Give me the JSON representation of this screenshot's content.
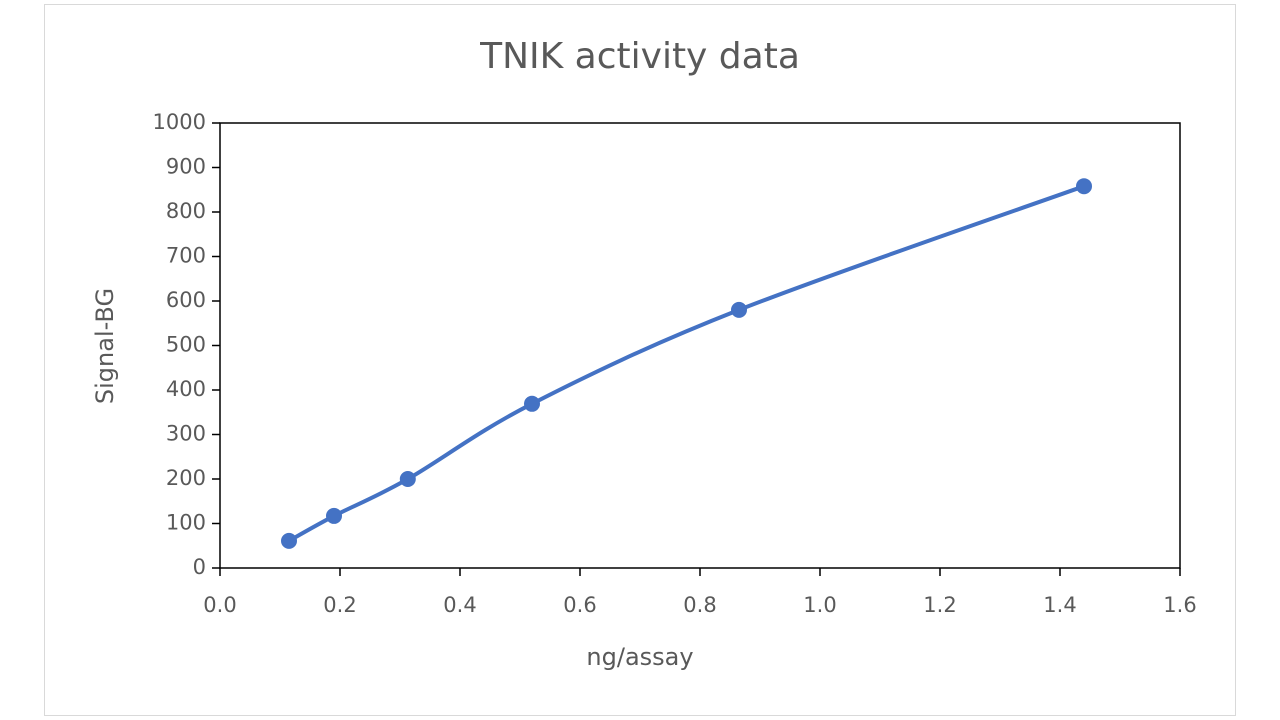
{
  "chart_data": {
    "type": "scatter",
    "title": "TNIK activity data",
    "x_label": "ng/assay",
    "y_label": "Signal-BG",
    "x": [
      0.115,
      0.19,
      0.313,
      0.52,
      0.865,
      1.44
    ],
    "series": [
      {
        "name": "TNIK",
        "color": "#4472c4",
        "values": [
          61,
          117,
          200,
          369,
          580,
          858
        ]
      }
    ],
    "xlim": [
      0,
      1.6
    ],
    "xticks": [
      {
        "value": 0,
        "label": "0.0"
      },
      {
        "value": 0.2,
        "label": "0.2"
      },
      {
        "value": 0.4,
        "label": "0.4"
      },
      {
        "value": 0.6,
        "label": "0.6"
      },
      {
        "value": 0.8,
        "label": "0.8"
      },
      {
        "value": 1,
        "label": "1.0"
      },
      {
        "value": 1.2,
        "label": "1.2"
      },
      {
        "value": 1.4,
        "label": "1.4"
      },
      {
        "value": 1.6,
        "label": "1.6"
      }
    ],
    "ylim": [
      0,
      1000
    ],
    "yticks": [
      0,
      100,
      200,
      300,
      400,
      500,
      600,
      700,
      800,
      900,
      1000
    ],
    "smooth": true
  }
}
